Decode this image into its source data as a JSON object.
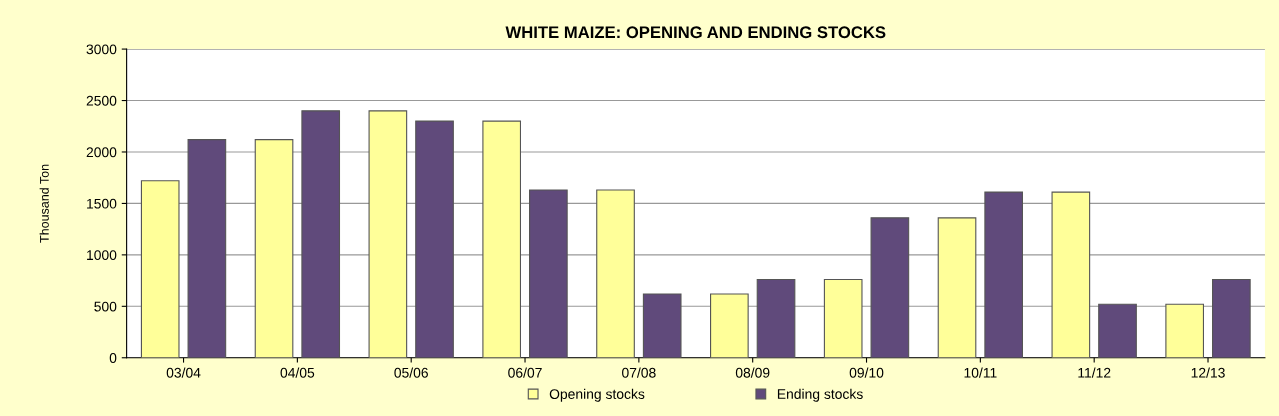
{
  "chart_data": {
    "type": "bar",
    "title": "WHITE MAIZE: OPENING AND ENDING STOCKS",
    "ylabel": "Thousand Ton",
    "categories": [
      "03/04",
      "04/05",
      "05/06",
      "06/07",
      "07/08",
      "08/09",
      "09/10",
      "10/11",
      "11/12",
      "12/13"
    ],
    "series": [
      {
        "name": "Opening stocks",
        "color": "#ffff99",
        "values": [
          1720,
          2120,
          2400,
          2300,
          1630,
          620,
          760,
          1360,
          1610,
          520
        ]
      },
      {
        "name": "Ending stocks",
        "color": "#604a7b",
        "values": [
          2120,
          2400,
          2300,
          1630,
          620,
          760,
          1360,
          1610,
          520,
          760
        ]
      }
    ],
    "ylim": [
      0,
      3000
    ],
    "yticks": [
      0,
      500,
      1000,
      1500,
      2000,
      2500,
      3000
    ],
    "grid": "y",
    "legend": "bottom"
  }
}
